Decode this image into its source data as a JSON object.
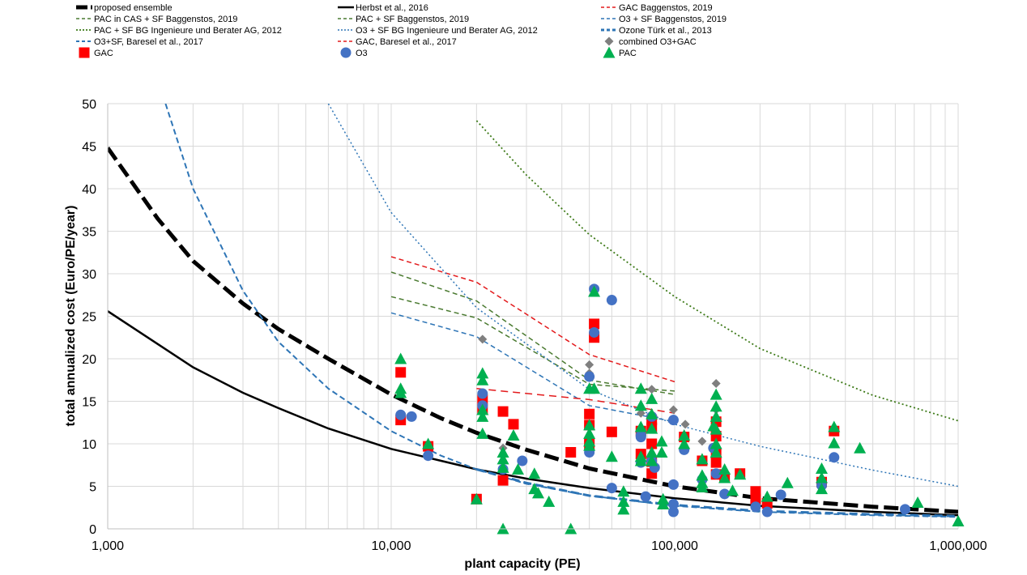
{
  "chart_data": {
    "type": "scatter",
    "title": "",
    "xlabel": "plant capacity (PE)",
    "ylabel": "total annualized cost (Euro/PE/year)",
    "xscale": "log",
    "xlim": [
      1000,
      1000000
    ],
    "ylim": [
      0,
      50
    ],
    "xticks": [
      {
        "v": 1000,
        "label": "1,000"
      },
      {
        "v": 10000,
        "label": "10,000"
      },
      {
        "v": 100000,
        "label": "100,000"
      },
      {
        "v": 1000000,
        "label": "1,000,000"
      }
    ],
    "yticks": [
      0,
      5,
      10,
      15,
      20,
      25,
      30,
      35,
      40,
      45,
      50
    ],
    "grid": true,
    "legend_position": "top",
    "curves": [
      {
        "name": "proposed ensemble",
        "color": "#000000",
        "dash": "18,7",
        "width": 5,
        "x": [
          1000,
          1500,
          2000,
          3000,
          4000,
          6000,
          10000,
          15000,
          20000,
          30000,
          50000,
          100000,
          200000,
          500000,
          1000000
        ],
        "y": [
          44.8,
          36.5,
          31.5,
          26.5,
          23.5,
          20.0,
          15.8,
          13.0,
          11.3,
          9.3,
          7.1,
          5.0,
          3.6,
          2.6,
          2.0
        ]
      },
      {
        "name": "Herbst et al., 2016",
        "color": "#000000",
        "dash": "",
        "width": 2.5,
        "x": [
          1000,
          2000,
          3000,
          4000,
          6000,
          10000,
          15000,
          20000,
          30000,
          50000,
          100000,
          200000,
          500000,
          1000000
        ],
        "y": [
          25.6,
          19.0,
          16.0,
          14.2,
          11.8,
          9.4,
          8.0,
          7.0,
          5.9,
          4.8,
          3.6,
          2.7,
          2.0,
          1.6
        ]
      },
      {
        "name": "GAC Baggenstos, 2019",
        "color": "#e31a1c",
        "dash": "6,4",
        "width": 1.5,
        "x": [
          10000,
          20000,
          50000,
          100000
        ],
        "y": [
          32.0,
          29.0,
          20.5,
          17.3
        ]
      },
      {
        "name": "PAC in CAS + SF Baggenstos, 2019",
        "color": "#4a7a30",
        "dash": "6,4",
        "width": 1.5,
        "x": [
          10000,
          20000,
          50000,
          100000
        ],
        "y": [
          30.2,
          26.8,
          17.5,
          15.8
        ]
      },
      {
        "name": "PAC + SF Baggenstos, 2019",
        "color": "#4a7a30",
        "dash": "6,4",
        "width": 1.5,
        "x": [
          10000,
          20000,
          50000,
          100000
        ],
        "y": [
          27.3,
          24.8,
          17.0,
          16.2
        ]
      },
      {
        "name": "O3 + SF Baggenstos, 2019",
        "color": "#2e75b6",
        "dash": "6,4",
        "width": 1.5,
        "x": [
          10000,
          20000,
          50000,
          100000
        ],
        "y": [
          25.4,
          22.6,
          14.5,
          12.6
        ]
      },
      {
        "name": "PAC + SF BG Ingenieure und Berater AG, 2012",
        "color": "#3d7a18",
        "dash": "2,3",
        "width": 1.8,
        "x": [
          20000,
          30000,
          50000,
          100000,
          200000,
          500000,
          1000000
        ],
        "y": [
          48.0,
          41.6,
          34.6,
          27.3,
          21.2,
          15.7,
          12.7
        ]
      },
      {
        "name": "O3 + SF BG Ingenieure und Berater AG, 2012",
        "color": "#2e75b6",
        "dash": "2,3",
        "width": 1.5,
        "x": [
          6000,
          10000,
          20000,
          50000,
          100000,
          200000,
          500000,
          1000000
        ],
        "y": [
          50.0,
          37.2,
          26.0,
          16.4,
          12.3,
          9.7,
          6.9,
          5.0
        ]
      },
      {
        "name": "Ozone Türk et al., 2013",
        "color": "#2e75b6",
        "dash": "10,5",
        "width": 3,
        "x": [
          20000,
          30000,
          50000,
          100000,
          200000,
          500000,
          1000000
        ],
        "y": [
          7.0,
          5.4,
          3.9,
          2.8,
          2.1,
          1.7,
          1.5
        ]
      },
      {
        "name": "O3+SF, Baresel et al., 2017",
        "color": "#2e75b6",
        "dash": "7,4",
        "width": 2,
        "x": [
          1600,
          2000,
          3000,
          4000,
          6000,
          10000,
          15000,
          20000,
          30000,
          50000,
          100000,
          200000,
          500000,
          1000000
        ],
        "y": [
          50.0,
          40.0,
          28.0,
          22.0,
          16.5,
          11.5,
          8.6,
          7.0,
          5.3,
          3.9,
          2.7,
          2.0,
          1.6,
          1.4
        ]
      },
      {
        "name": "GAC, Baresel et al., 2017",
        "color": "#e31a1c",
        "dash": "9,6",
        "width": 1.5,
        "x": [
          20000,
          50000,
          100000
        ],
        "y": [
          16.5,
          15.2,
          13.6
        ]
      }
    ],
    "points": {
      "combined": {
        "name": "combined O3+GAC",
        "color": "#7f7f7f",
        "shape": "diamond",
        "x": [
          21000,
          24800,
          50000,
          50000,
          76000,
          83000,
          99000,
          109000,
          125000,
          140000,
          140000,
          140000
        ],
        "y": [
          22.3,
          9.5,
          19.3,
          18.3,
          13.6,
          16.4,
          14.0,
          12.3,
          10.3,
          17.1,
          14.0,
          12.5
        ]
      },
      "gac": {
        "name": "GAC",
        "color": "#ff0000",
        "shape": "square",
        "x": [
          10800,
          10800,
          13500,
          20000,
          21000,
          21000,
          24800,
          24800,
          27000,
          43000,
          50000,
          50000,
          50000,
          52000,
          52000,
          60000,
          76000,
          76000,
          83000,
          83000,
          83000,
          83000,
          83000,
          108000,
          125000,
          140000,
          140000,
          140000,
          140000,
          140000,
          150000,
          170000,
          193000,
          193000,
          212000,
          330000,
          365000
        ],
        "y": [
          18.4,
          12.8,
          9.7,
          3.5,
          15.2,
          14.0,
          13.8,
          5.7,
          12.3,
          9.0,
          13.5,
          12.2,
          10.0,
          24.1,
          22.5,
          11.4,
          11.5,
          8.8,
          12.8,
          11.9,
          10.0,
          7.9,
          6.5,
          10.8,
          8.0,
          12.6,
          10.9,
          8.8,
          7.8,
          6.4,
          6.0,
          6.5,
          4.4,
          3.5,
          3.0,
          5.5,
          11.5
        ]
      },
      "o3": {
        "name": "O3",
        "color": "#4472c4",
        "shape": "circle",
        "x": [
          10800,
          11800,
          13500,
          21000,
          21000,
          24800,
          29000,
          50000,
          50000,
          52000,
          52000,
          60000,
          60000,
          76000,
          76000,
          76000,
          79000,
          83000,
          83000,
          85000,
          99000,
          99000,
          99000,
          99000,
          108000,
          125000,
          137000,
          140000,
          150000,
          193000,
          212000,
          237000,
          330000,
          365000,
          650000
        ],
        "y": [
          13.4,
          13.2,
          8.6,
          15.9,
          14.5,
          7.0,
          8.0,
          17.9,
          9.0,
          28.2,
          23.1,
          26.9,
          4.8,
          11.0,
          10.8,
          7.8,
          3.8,
          13.2,
          8.0,
          7.2,
          12.8,
          5.2,
          2.9,
          2.0,
          9.3,
          5.8,
          9.5,
          6.5,
          4.1,
          2.6,
          2.0,
          4.0,
          5.1,
          8.4,
          2.3
        ]
      },
      "pac": {
        "name": "PAC",
        "color": "#00b050",
        "shape": "triangle",
        "x": [
          10800,
          10800,
          10800,
          13500,
          20000,
          21000,
          21000,
          21000,
          21000,
          21000,
          24800,
          24800,
          24800,
          24800,
          27000,
          28000,
          32000,
          32000,
          33000,
          36000,
          43000,
          50000,
          50000,
          50000,
          50000,
          50000,
          52000,
          52000,
          60000,
          66000,
          66000,
          66000,
          76000,
          76000,
          76000,
          76000,
          76000,
          83000,
          83000,
          83000,
          83000,
          83000,
          90000,
          90000,
          91000,
          91000,
          108000,
          108000,
          125000,
          125000,
          125000,
          125000,
          137000,
          140000,
          140000,
          140000,
          140000,
          140000,
          140000,
          150000,
          150000,
          160000,
          170000,
          212000,
          250000,
          330000,
          330000,
          330000,
          365000,
          365000,
          450000,
          720000,
          1000000
        ],
        "y": [
          20.0,
          16.5,
          16.0,
          10.0,
          3.5,
          18.3,
          17.5,
          14.0,
          13.2,
          11.2,
          9.0,
          8.2,
          7.2,
          0.0,
          11.0,
          7.0,
          6.5,
          4.7,
          4.2,
          3.2,
          0.0,
          16.5,
          12.2,
          11.2,
          10.3,
          9.8,
          27.9,
          16.5,
          8.5,
          4.4,
          3.2,
          2.3,
          16.5,
          14.5,
          12.0,
          8.5,
          8.0,
          15.3,
          13.5,
          11.8,
          9.0,
          8.0,
          10.3,
          9.0,
          3.5,
          2.9,
          11.0,
          10.0,
          8.2,
          6.3,
          5.4,
          4.9,
          12.1,
          15.8,
          14.4,
          13.2,
          11.7,
          10.0,
          9.0,
          7.0,
          6.0,
          4.5,
          6.4,
          3.8,
          5.4,
          7.1,
          6.0,
          4.7,
          12.0,
          10.1,
          9.5,
          3.1,
          0.9
        ]
      }
    },
    "legend_order": [
      {
        "type": "line",
        "ref": 0
      },
      {
        "type": "line",
        "ref": 1
      },
      {
        "type": "line",
        "ref": 2
      },
      {
        "type": "line",
        "ref": 3
      },
      {
        "type": "line",
        "ref": 4
      },
      {
        "type": "line",
        "ref": 5
      },
      {
        "type": "line",
        "ref": 6
      },
      {
        "type": "line",
        "ref": 7
      },
      {
        "type": "line",
        "ref": 8
      },
      {
        "type": "line",
        "ref": 9
      },
      {
        "type": "line",
        "ref": 10
      },
      {
        "type": "marker",
        "ref": "combined"
      },
      {
        "type": "marker",
        "ref": "gac"
      },
      {
        "type": "marker",
        "ref": "o3"
      },
      {
        "type": "marker",
        "ref": "pac"
      }
    ]
  }
}
